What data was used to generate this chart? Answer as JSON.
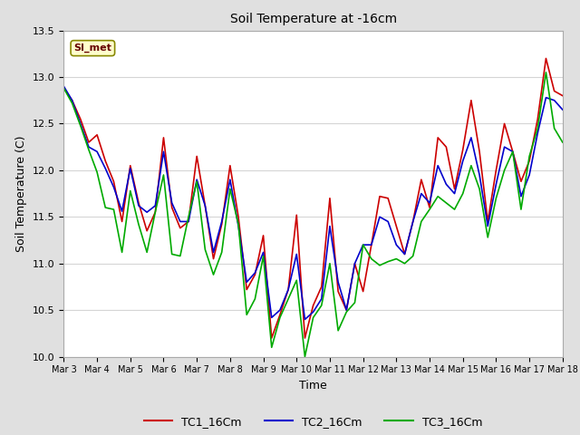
{
  "title": "Soil Temperature at -16cm",
  "xlabel": "Time",
  "ylabel": "Soil Temperature (C)",
  "ylim": [
    10.0,
    13.5
  ],
  "xlim": [
    0,
    15
  ],
  "x_tick_labels": [
    "Mar 3",
    "Mar 4",
    "Mar 5",
    "Mar 6",
    "Mar 7",
    "Mar 8",
    "Mar 9",
    "Mar 10",
    "Mar 11",
    "Mar 12",
    "Mar 13",
    "Mar 14",
    "Mar 15",
    "Mar 16",
    "Mar 17",
    "Mar 18"
  ],
  "outer_bg_color": "#e0e0e0",
  "plot_bg_color": "#ffffff",
  "grid_color": "#d5d5d5",
  "annotation_text": "SI_met",
  "annotation_bg": "#ffffcc",
  "annotation_border": "#888800",
  "lines": {
    "TC1_16Cm": {
      "color": "#cc0000",
      "data": [
        12.88,
        12.75,
        12.55,
        12.3,
        12.38,
        12.1,
        11.88,
        11.45,
        12.05,
        11.65,
        11.35,
        11.55,
        12.35,
        11.6,
        11.38,
        11.45,
        12.15,
        11.62,
        11.05,
        11.42,
        12.05,
        11.5,
        10.72,
        10.88,
        11.3,
        10.2,
        10.45,
        10.72,
        11.52,
        10.2,
        10.55,
        10.75,
        11.7,
        10.7,
        10.5,
        11.0,
        10.7,
        11.2,
        11.72,
        11.7,
        11.4,
        11.1,
        11.45,
        11.9,
        11.6,
        12.35,
        12.25,
        11.8,
        12.22,
        12.75,
        12.2,
        11.45,
        12.0,
        12.5,
        12.2,
        11.88,
        12.1,
        12.55,
        13.2,
        12.85,
        12.8
      ]
    },
    "TC2_16Cm": {
      "color": "#0000cc",
      "data": [
        12.9,
        12.75,
        12.5,
        12.25,
        12.2,
        12.02,
        11.82,
        11.56,
        12.02,
        11.62,
        11.55,
        11.62,
        12.2,
        11.65,
        11.45,
        11.45,
        11.9,
        11.62,
        11.12,
        11.45,
        11.9,
        11.4,
        10.8,
        10.9,
        11.12,
        10.42,
        10.5,
        10.72,
        11.1,
        10.4,
        10.48,
        10.62,
        11.4,
        10.8,
        10.5,
        11.0,
        11.2,
        11.2,
        11.5,
        11.45,
        11.2,
        11.1,
        11.45,
        11.75,
        11.65,
        12.05,
        11.85,
        11.75,
        12.1,
        12.35,
        11.95,
        11.4,
        11.85,
        12.25,
        12.2,
        11.72,
        11.95,
        12.4,
        12.78,
        12.75,
        12.65
      ]
    },
    "TC3_16Cm": {
      "color": "#00aa00",
      "data": [
        12.88,
        12.72,
        12.48,
        12.22,
        11.98,
        11.6,
        11.58,
        11.12,
        11.78,
        11.42,
        11.12,
        11.55,
        11.95,
        11.1,
        11.08,
        11.5,
        11.88,
        11.15,
        10.88,
        11.12,
        11.8,
        11.42,
        10.45,
        10.62,
        11.08,
        10.1,
        10.42,
        10.62,
        10.82,
        10.0,
        10.42,
        10.55,
        11.0,
        10.28,
        10.48,
        10.58,
        11.2,
        11.05,
        10.98,
        11.02,
        11.05,
        11.0,
        11.08,
        11.45,
        11.58,
        11.72,
        11.65,
        11.58,
        11.75,
        12.05,
        11.8,
        11.28,
        11.7,
        12.0,
        12.2,
        11.58,
        12.15,
        12.45,
        13.05,
        12.45,
        12.3
      ]
    }
  }
}
